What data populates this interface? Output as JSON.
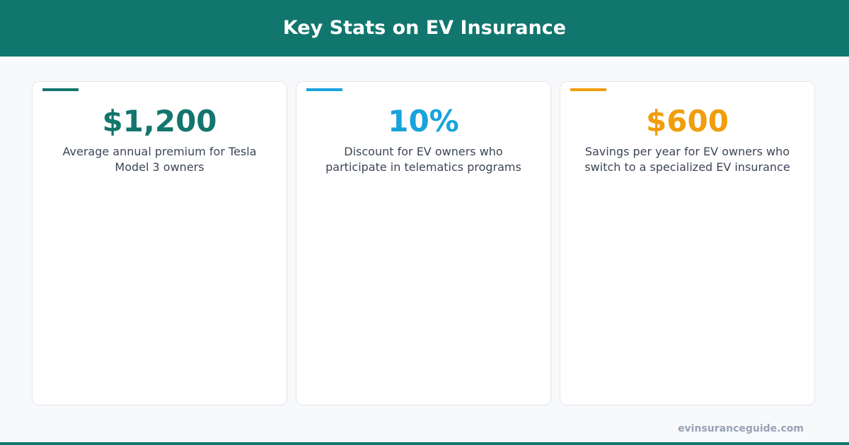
{
  "header": {
    "title": "Key Stats on EV Insurance"
  },
  "cards": [
    {
      "value": "$1,200",
      "description": "Average annual premium for Tesla Model 3 owners",
      "color": "#12766d"
    },
    {
      "value": "10%",
      "description": "Discount for EV owners who participate in telematics programs",
      "color": "#18a3dc"
    },
    {
      "value": "$600",
      "description": "Savings per year for EV owners who switch to a specialized EV insurance",
      "color": "#f29d0c"
    }
  ],
  "footer": {
    "source": "evinsuranceguide.com"
  }
}
